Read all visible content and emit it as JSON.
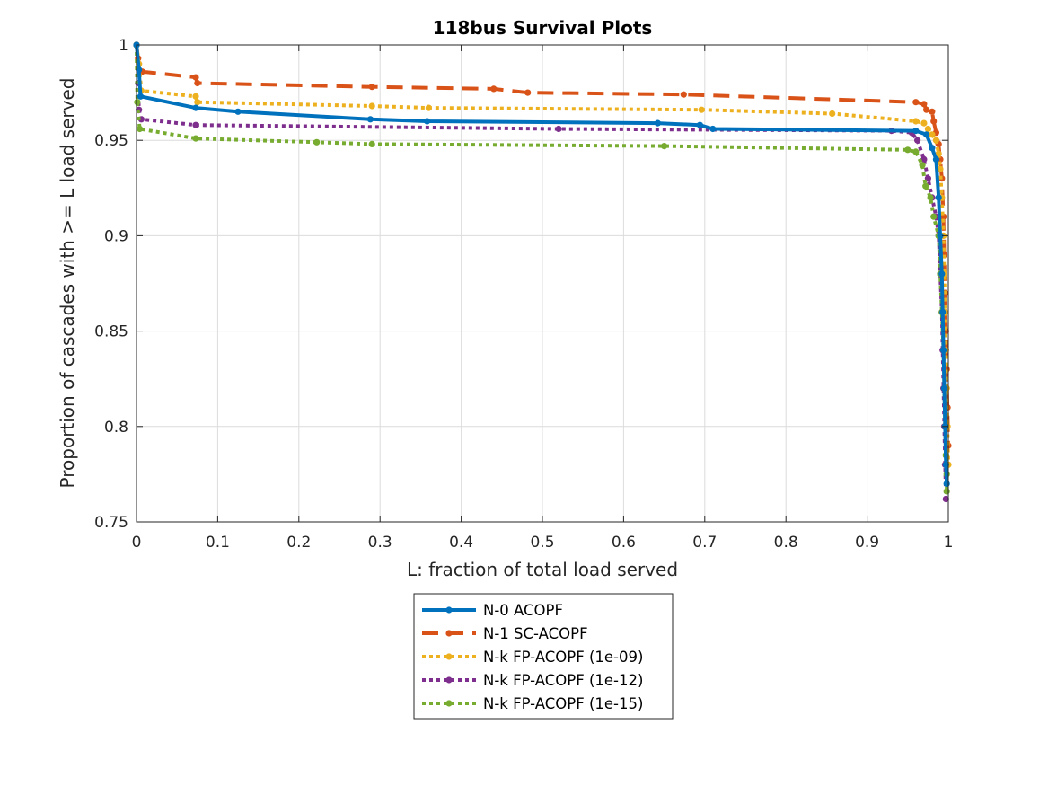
{
  "chart_data": {
    "type": "line",
    "title": "118bus Survival Plots",
    "xlabel": "L: fraction of total load served",
    "ylabel": "Proportion of cascades with >= L load served",
    "xlim": [
      0,
      1
    ],
    "ylim": [
      0.75,
      1
    ],
    "xticks": [
      0,
      0.1,
      0.2,
      0.3,
      0.4,
      0.5,
      0.6,
      0.7,
      0.8,
      0.9,
      1
    ],
    "xtick_labels": [
      "0",
      "0.1",
      "0.2",
      "0.3",
      "0.4",
      "0.5",
      "0.6",
      "0.7",
      "0.8",
      "0.9",
      "1"
    ],
    "yticks": [
      0.75,
      0.8,
      0.85,
      0.9,
      0.95,
      1
    ],
    "ytick_labels": [
      "0.75",
      "0.8",
      "0.85",
      "0.9",
      "0.95",
      "1"
    ],
    "grid": true,
    "legend_position": "below",
    "series": [
      {
        "name": "N-0 ACOPF",
        "color": "#0072BD",
        "style": "solid",
        "points": [
          [
            0,
            1
          ],
          [
            0.003,
            0.987
          ],
          [
            0.005,
            0.973
          ],
          [
            0.073,
            0.967
          ],
          [
            0.125,
            0.965
          ],
          [
            0.288,
            0.961
          ],
          [
            0.358,
            0.96
          ],
          [
            0.642,
            0.959
          ],
          [
            0.694,
            0.958
          ],
          [
            0.71,
            0.956
          ],
          [
            0.96,
            0.955
          ],
          [
            0.973,
            0.953
          ],
          [
            0.98,
            0.946
          ],
          [
            0.985,
            0.94
          ],
          [
            0.988,
            0.92
          ],
          [
            0.99,
            0.9
          ],
          [
            0.992,
            0.88
          ],
          [
            0.993,
            0.86
          ],
          [
            0.994,
            0.84
          ],
          [
            0.995,
            0.82
          ],
          [
            0.996,
            0.8
          ],
          [
            0.997,
            0.78
          ],
          [
            0.998,
            0.77
          ]
        ]
      },
      {
        "name": "N-1 SC-ACOPF",
        "color": "#D95319",
        "style": "dashed",
        "points": [
          [
            0,
            1
          ],
          [
            0.002,
            0.993
          ],
          [
            0.007,
            0.986
          ],
          [
            0.073,
            0.983
          ],
          [
            0.075,
            0.98
          ],
          [
            0.29,
            0.978
          ],
          [
            0.44,
            0.977
          ],
          [
            0.482,
            0.975
          ],
          [
            0.674,
            0.974
          ],
          [
            0.96,
            0.97
          ],
          [
            0.97,
            0.969
          ],
          [
            0.973,
            0.966
          ],
          [
            0.98,
            0.965
          ],
          [
            0.982,
            0.96
          ],
          [
            0.985,
            0.954
          ],
          [
            0.988,
            0.948
          ],
          [
            0.99,
            0.94
          ],
          [
            0.992,
            0.93
          ],
          [
            0.994,
            0.91
          ],
          [
            0.995,
            0.89
          ],
          [
            0.996,
            0.87
          ],
          [
            0.997,
            0.85
          ],
          [
            0.998,
            0.83
          ],
          [
            0.999,
            0.81
          ],
          [
            1,
            0.79
          ]
        ]
      },
      {
        "name": "N-k FP-ACOPF (1e-09)",
        "color": "#EDB120",
        "style": "dotted",
        "points": [
          [
            0,
            1
          ],
          [
            0.003,
            0.99
          ],
          [
            0.006,
            0.976
          ],
          [
            0.073,
            0.973
          ],
          [
            0.075,
            0.97
          ],
          [
            0.29,
            0.968
          ],
          [
            0.36,
            0.967
          ],
          [
            0.696,
            0.966
          ],
          [
            0.857,
            0.964
          ],
          [
            0.96,
            0.96
          ],
          [
            0.97,
            0.959
          ],
          [
            0.975,
            0.956
          ],
          [
            0.98,
            0.953
          ],
          [
            0.985,
            0.95
          ],
          [
            0.988,
            0.943
          ],
          [
            0.99,
            0.935
          ],
          [
            0.992,
            0.92
          ],
          [
            0.994,
            0.9
          ],
          [
            0.995,
            0.88
          ],
          [
            0.996,
            0.86
          ],
          [
            0.997,
            0.84
          ],
          [
            0.998,
            0.82
          ],
          [
            0.999,
            0.8
          ],
          [
            1,
            0.78
          ]
        ]
      },
      {
        "name": "N-k FP-ACOPF (1e-12)",
        "color": "#7E2F8E",
        "style": "dotted",
        "points": [
          [
            0,
            1
          ],
          [
            0.002,
            0.98
          ],
          [
            0.003,
            0.966
          ],
          [
            0.006,
            0.961
          ],
          [
            0.073,
            0.958
          ],
          [
            0.52,
            0.956
          ],
          [
            0.93,
            0.955
          ],
          [
            0.955,
            0.954
          ],
          [
            0.962,
            0.95
          ],
          [
            0.97,
            0.94
          ],
          [
            0.975,
            0.93
          ],
          [
            0.98,
            0.92
          ],
          [
            0.985,
            0.91
          ],
          [
            0.988,
            0.9
          ],
          [
            0.99,
            0.88
          ],
          [
            0.992,
            0.86
          ],
          [
            0.993,
            0.84
          ],
          [
            0.994,
            0.82
          ],
          [
            0.995,
            0.8
          ],
          [
            0.996,
            0.78
          ],
          [
            0.997,
            0.762
          ]
        ]
      },
      {
        "name": "N-k FP-ACOPF (1e-15)",
        "color": "#77AC30",
        "style": "dotted",
        "points": [
          [
            0,
            1
          ],
          [
            0.001,
            0.97
          ],
          [
            0.004,
            0.956
          ],
          [
            0.073,
            0.951
          ],
          [
            0.222,
            0.949
          ],
          [
            0.29,
            0.948
          ],
          [
            0.65,
            0.947
          ],
          [
            0.95,
            0.945
          ],
          [
            0.96,
            0.944
          ],
          [
            0.968,
            0.937
          ],
          [
            0.972,
            0.926
          ],
          [
            0.978,
            0.92
          ],
          [
            0.982,
            0.91
          ],
          [
            0.988,
            0.9
          ],
          [
            0.99,
            0.88
          ],
          [
            0.992,
            0.86
          ],
          [
            0.994,
            0.84
          ],
          [
            0.995,
            0.82
          ],
          [
            0.996,
            0.8
          ],
          [
            0.997,
            0.785
          ],
          [
            0.998,
            0.775
          ],
          [
            0.998,
            0.766
          ]
        ]
      }
    ]
  }
}
